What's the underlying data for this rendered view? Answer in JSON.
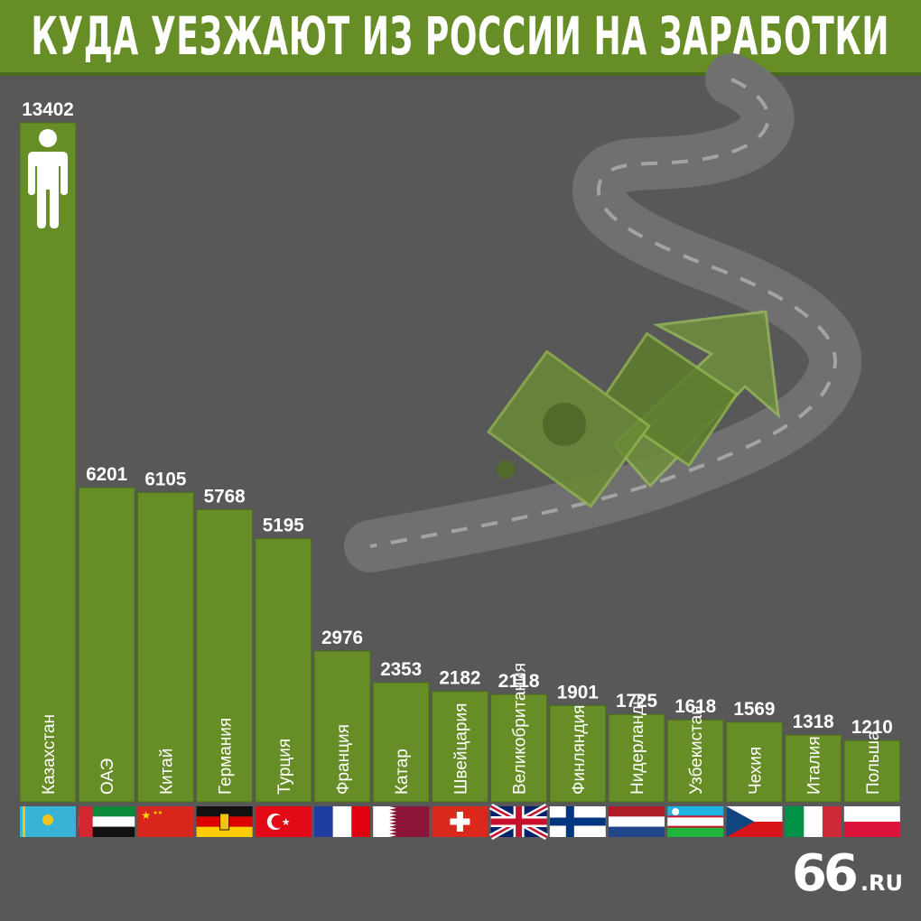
{
  "title": "КУДА УЕЗЖАЮТ ИЗ РОССИИ НА ЗАРАБОТКИ",
  "brand": {
    "number": "66",
    "domain": ".RU"
  },
  "colors": {
    "background": "#585858",
    "bar": "#668d26",
    "bar_edge": "#4d6b1c",
    "text": "#ffffff"
  },
  "icons": {
    "person": "person-icon",
    "background": "road-with-money-and-arrow"
  },
  "chart_data": {
    "type": "bar",
    "title": "КУДА УЕЗЖАЮТ ИЗ РОССИИ НА ЗАРАБОТКИ",
    "xlabel": "",
    "ylabel": "",
    "ylim": [
      0,
      13402
    ],
    "grid": false,
    "legend": "none",
    "categories": [
      "Казахстан",
      "ОАЭ",
      "Китай",
      "Германия",
      "Турция",
      "Франция",
      "Катар",
      "Швейцария",
      "Великобритания",
      "Финляндия",
      "Нидерланды",
      "Узбекистан",
      "Чехия",
      "Италия",
      "Польша"
    ],
    "values": [
      13402,
      6201,
      6105,
      5768,
      5195,
      2976,
      2353,
      2182,
      2118,
      1901,
      1725,
      1618,
      1569,
      1318,
      1210
    ],
    "value_labels": [
      "13402",
      "6201",
      "6105",
      "5768",
      "5195",
      "2976",
      "2353",
      "2182",
      "2118",
      "1901",
      "1725",
      "1618",
      "1569",
      "1318",
      "1210"
    ],
    "flags": [
      "kz",
      "ae",
      "cn",
      "de",
      "tr",
      "fr",
      "qa",
      "ch",
      "gb",
      "fi",
      "nl",
      "uz",
      "cz",
      "it",
      "pl"
    ]
  }
}
